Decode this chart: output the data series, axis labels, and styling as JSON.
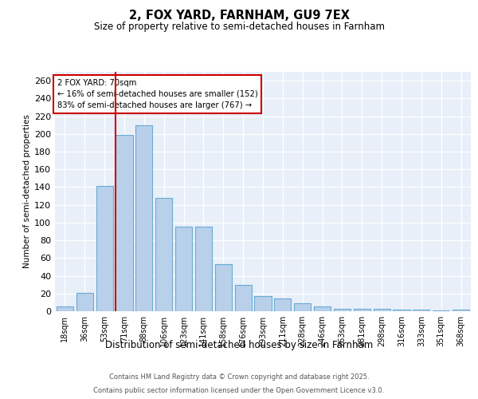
{
  "title1": "2, FOX YARD, FARNHAM, GU9 7EX",
  "title2": "Size of property relative to semi-detached houses in Farnham",
  "xlabel": "Distribution of semi-detached houses by size in Farnham",
  "ylabel": "Number of semi-detached properties",
  "categories": [
    "18sqm",
    "36sqm",
    "53sqm",
    "71sqm",
    "88sqm",
    "106sqm",
    "123sqm",
    "141sqm",
    "158sqm",
    "176sqm",
    "193sqm",
    "211sqm",
    "228sqm",
    "246sqm",
    "263sqm",
    "281sqm",
    "298sqm",
    "316sqm",
    "333sqm",
    "351sqm",
    "368sqm"
  ],
  "values": [
    5,
    21,
    141,
    199,
    210,
    128,
    95,
    95,
    53,
    30,
    17,
    14,
    9,
    5,
    3,
    3,
    3,
    2,
    2,
    1,
    2
  ],
  "bar_color": "#b8d0ea",
  "bar_edge_color": "#6aaad4",
  "vline_color": "#cc0000",
  "annotation_title": "2 FOX YARD: 70sqm",
  "annotation_line1": "← 16% of semi-detached houses are smaller (152)",
  "annotation_line2": "83% of semi-detached houses are larger (767) →",
  "annotation_box_facecolor": "#ffffff",
  "annotation_box_edgecolor": "#cc0000",
  "ylim": [
    0,
    270
  ],
  "yticks": [
    0,
    20,
    40,
    60,
    80,
    100,
    120,
    140,
    160,
    180,
    200,
    220,
    240,
    260
  ],
  "bg_color": "#e8eff9",
  "grid_color": "#ffffff",
  "footer1": "Contains HM Land Registry data © Crown copyright and database right 2025.",
  "footer2": "Contains public sector information licensed under the Open Government Licence v3.0."
}
